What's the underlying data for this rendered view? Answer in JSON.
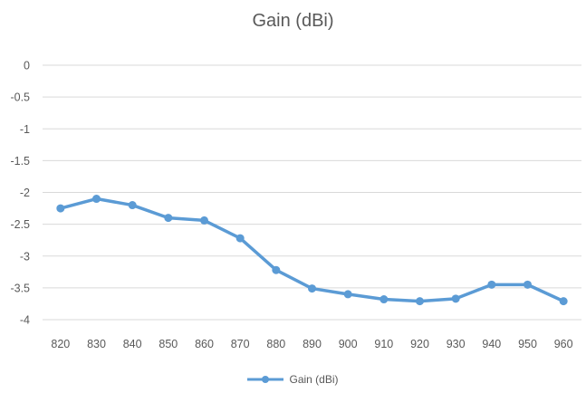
{
  "chart_data": {
    "type": "line",
    "title": "Gain (dBi)",
    "xlabel": "",
    "ylabel": "",
    "categories": [
      820,
      830,
      840,
      850,
      860,
      870,
      880,
      890,
      900,
      910,
      920,
      930,
      940,
      950,
      960
    ],
    "series": [
      {
        "name": "Gain (dBi)",
        "values": [
          -2.25,
          -2.1,
          -2.2,
          -2.4,
          -2.44,
          -2.72,
          -3.22,
          -3.51,
          -3.6,
          -3.68,
          -3.71,
          -3.67,
          -3.45,
          -3.45,
          -3.71
        ]
      }
    ],
    "ylim": [
      -4,
      0
    ],
    "yticks": [
      0,
      -0.5,
      -1,
      -1.5,
      -2,
      -2.5,
      -3,
      -3.5,
      -4
    ],
    "ytick_labels": [
      "0",
      "-0.5",
      "-1",
      "-1.5",
      "-2",
      "-2.5",
      "-3",
      "-3.5",
      "-4"
    ],
    "grid": true,
    "legend_position": "bottom",
    "colors": {
      "series": "#5b9bd5",
      "grid": "#d9d9d9",
      "text": "#595959"
    }
  }
}
